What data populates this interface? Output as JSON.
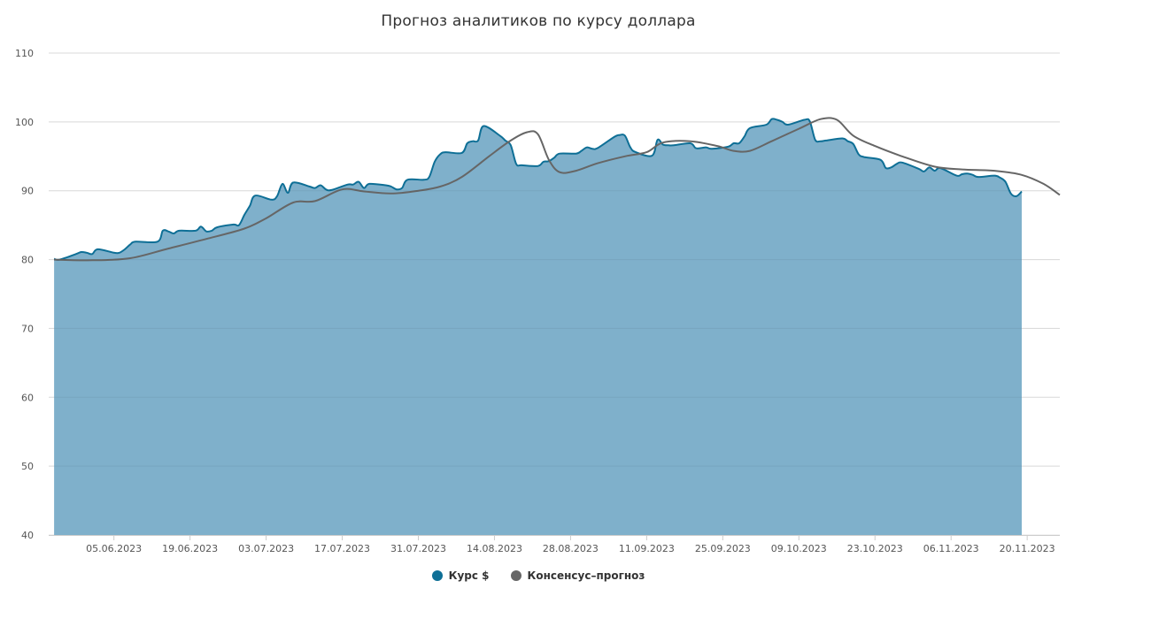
{
  "chart_data": {
    "type": "area",
    "title": "Прогноз аналитиков по курсу доллара",
    "xlabel": "",
    "ylabel": "",
    "ylim": [
      40,
      110
    ],
    "yticks": [
      40,
      50,
      60,
      70,
      80,
      90,
      100,
      110
    ],
    "xlim": [
      "2023-05-24",
      "2023-11-26"
    ],
    "xticks": [
      "05.06.2023",
      "19.06.2023",
      "03.07.2023",
      "17.07.2023",
      "31.07.2023",
      "14.08.2023",
      "28.08.2023",
      "11.09.2023",
      "25.09.2023",
      "09.10.2023",
      "23.10.2023",
      "06.11.2023",
      "20.11.2023"
    ],
    "grid": true,
    "legend_position": "bottom-center",
    "series": [
      {
        "name": "Курс $",
        "kind": "area",
        "color": "#0e6f96",
        "fill_color": "#7fb0cb",
        "points": [
          [
            "2023-05-25",
            80.1
          ],
          [
            "2023-05-26",
            80.0
          ],
          [
            "2023-05-29",
            80.8
          ],
          [
            "2023-05-30",
            81.1
          ],
          [
            "2023-05-31",
            81.0
          ],
          [
            "2023-06-01",
            80.8
          ],
          [
            "2023-06-02",
            81.5
          ],
          [
            "2023-06-05",
            81.0
          ],
          [
            "2023-06-06",
            81.0
          ],
          [
            "2023-06-07",
            81.5
          ],
          [
            "2023-06-08",
            82.2
          ],
          [
            "2023-06-09",
            82.6
          ],
          [
            "2023-06-13",
            82.6
          ],
          [
            "2023-06-14",
            84.2
          ],
          [
            "2023-06-15",
            84.1
          ],
          [
            "2023-06-16",
            83.8
          ],
          [
            "2023-06-17",
            84.2
          ],
          [
            "2023-06-20",
            84.2
          ],
          [
            "2023-06-21",
            84.8
          ],
          [
            "2023-06-22",
            84.1
          ],
          [
            "2023-06-23",
            84.2
          ],
          [
            "2023-06-24",
            84.7
          ],
          [
            "2023-06-27",
            85.1
          ],
          [
            "2023-06-28",
            85.0
          ],
          [
            "2023-06-29",
            86.5
          ],
          [
            "2023-06-30",
            87.8
          ],
          [
            "2023-07-01",
            89.3
          ],
          [
            "2023-07-04",
            88.7
          ],
          [
            "2023-07-05",
            89.2
          ],
          [
            "2023-07-06",
            91.0
          ],
          [
            "2023-07-07",
            89.7
          ],
          [
            "2023-07-08",
            91.2
          ],
          [
            "2023-07-11",
            90.6
          ],
          [
            "2023-07-12",
            90.4
          ],
          [
            "2023-07-13",
            90.8
          ],
          [
            "2023-07-14",
            90.2
          ],
          [
            "2023-07-15",
            90.1
          ],
          [
            "2023-07-18",
            90.9
          ],
          [
            "2023-07-19",
            90.9
          ],
          [
            "2023-07-20",
            91.3
          ],
          [
            "2023-07-21",
            90.4
          ],
          [
            "2023-07-22",
            91.0
          ],
          [
            "2023-07-25",
            90.8
          ],
          [
            "2023-07-26",
            90.6
          ],
          [
            "2023-07-27",
            90.2
          ],
          [
            "2023-07-28",
            90.4
          ],
          [
            "2023-07-29",
            91.6
          ],
          [
            "2023-08-01",
            91.6
          ],
          [
            "2023-08-02",
            92.0
          ],
          [
            "2023-08-03",
            94.2
          ],
          [
            "2023-08-04",
            95.3
          ],
          [
            "2023-08-05",
            95.6
          ],
          [
            "2023-08-08",
            95.5
          ],
          [
            "2023-08-09",
            96.9
          ],
          [
            "2023-08-10",
            97.2
          ],
          [
            "2023-08-11",
            97.3
          ],
          [
            "2023-08-12",
            99.4
          ],
          [
            "2023-08-15",
            98.0
          ],
          [
            "2023-08-16",
            97.3
          ],
          [
            "2023-08-17",
            96.6
          ],
          [
            "2023-08-18",
            93.9
          ],
          [
            "2023-08-19",
            93.7
          ],
          [
            "2023-08-22",
            93.6
          ],
          [
            "2023-08-23",
            94.2
          ],
          [
            "2023-08-24",
            94.3
          ],
          [
            "2023-08-25",
            94.8
          ],
          [
            "2023-08-26",
            95.4
          ],
          [
            "2023-08-29",
            95.4
          ],
          [
            "2023-08-30",
            95.8
          ],
          [
            "2023-08-31",
            96.3
          ],
          [
            "2023-09-01",
            96.1
          ],
          [
            "2023-09-02",
            96.2
          ],
          [
            "2023-09-05",
            97.8
          ],
          [
            "2023-09-06",
            98.1
          ],
          [
            "2023-09-07",
            98.0
          ],
          [
            "2023-09-08",
            96.3
          ],
          [
            "2023-09-09",
            95.6
          ],
          [
            "2023-09-12",
            95.1
          ],
          [
            "2023-09-13",
            97.4
          ],
          [
            "2023-09-14",
            96.7
          ],
          [
            "2023-09-15",
            96.6
          ],
          [
            "2023-09-16",
            96.6
          ],
          [
            "2023-09-19",
            96.9
          ],
          [
            "2023-09-20",
            96.2
          ],
          [
            "2023-09-21",
            96.2
          ],
          [
            "2023-09-22",
            96.3
          ],
          [
            "2023-09-23",
            96.1
          ],
          [
            "2023-09-26",
            96.4
          ],
          [
            "2023-09-27",
            96.9
          ],
          [
            "2023-09-28",
            96.9
          ],
          [
            "2023-09-29",
            97.9
          ],
          [
            "2023-09-30",
            99.1
          ],
          [
            "2023-10-03",
            99.6
          ],
          [
            "2023-10-04",
            100.4
          ],
          [
            "2023-10-05",
            100.3
          ],
          [
            "2023-10-06",
            100.0
          ],
          [
            "2023-10-07",
            99.6
          ],
          [
            "2023-10-10",
            100.3
          ],
          [
            "2023-10-11",
            100.1
          ],
          [
            "2023-10-12",
            97.4
          ],
          [
            "2023-10-13",
            97.2
          ],
          [
            "2023-10-14",
            97.3
          ],
          [
            "2023-10-17",
            97.6
          ],
          [
            "2023-10-18",
            97.2
          ],
          [
            "2023-10-19",
            96.8
          ],
          [
            "2023-10-20",
            95.3
          ],
          [
            "2023-10-21",
            94.9
          ],
          [
            "2023-10-24",
            94.5
          ],
          [
            "2023-10-25",
            93.3
          ],
          [
            "2023-10-26",
            93.4
          ],
          [
            "2023-10-27",
            93.9
          ],
          [
            "2023-10-28",
            94.1
          ],
          [
            "2023-10-31",
            93.2
          ],
          [
            "2023-11-01",
            92.8
          ],
          [
            "2023-11-02",
            93.4
          ],
          [
            "2023-11-03",
            92.9
          ],
          [
            "2023-11-04",
            93.3
          ],
          [
            "2023-11-07",
            92.2
          ],
          [
            "2023-11-08",
            92.4
          ],
          [
            "2023-11-09",
            92.5
          ],
          [
            "2023-11-10",
            92.3
          ],
          [
            "2023-11-11",
            92.0
          ],
          [
            "2023-11-14",
            92.2
          ],
          [
            "2023-11-15",
            91.9
          ],
          [
            "2023-11-16",
            91.3
          ],
          [
            "2023-11-17",
            89.6
          ],
          [
            "2023-11-18",
            89.2
          ],
          [
            "2023-11-19",
            89.9
          ]
        ]
      },
      {
        "name": "Консенсус–прогноз",
        "kind": "line",
        "color": "#666666",
        "points": [
          [
            "2023-05-25",
            80.0
          ],
          [
            "2023-06-01",
            79.9
          ],
          [
            "2023-06-08",
            80.2
          ],
          [
            "2023-06-15",
            81.6
          ],
          [
            "2023-06-22",
            83.0
          ],
          [
            "2023-06-29",
            84.5
          ],
          [
            "2023-07-03",
            86.0
          ],
          [
            "2023-07-08",
            88.3
          ],
          [
            "2023-07-12",
            88.5
          ],
          [
            "2023-07-17",
            90.2
          ],
          [
            "2023-07-21",
            89.9
          ],
          [
            "2023-07-26",
            89.6
          ],
          [
            "2023-07-31",
            90.0
          ],
          [
            "2023-08-04",
            90.6
          ],
          [
            "2023-08-08",
            92.0
          ],
          [
            "2023-08-13",
            95.0
          ],
          [
            "2023-08-17",
            97.3
          ],
          [
            "2023-08-20",
            98.5
          ],
          [
            "2023-08-22",
            98.2
          ],
          [
            "2023-08-24",
            94.5
          ],
          [
            "2023-08-26",
            92.7
          ],
          [
            "2023-08-29",
            92.9
          ],
          [
            "2023-09-02",
            94.0
          ],
          [
            "2023-09-07",
            95.0
          ],
          [
            "2023-09-11",
            95.6
          ],
          [
            "2023-09-14",
            97.0
          ],
          [
            "2023-09-19",
            97.2
          ],
          [
            "2023-09-24",
            96.5
          ],
          [
            "2023-09-27",
            95.8
          ],
          [
            "2023-09-30",
            95.8
          ],
          [
            "2023-10-04",
            97.2
          ],
          [
            "2023-10-09",
            99.0
          ],
          [
            "2023-10-13",
            100.4
          ],
          [
            "2023-10-16",
            100.3
          ],
          [
            "2023-10-19",
            98.0
          ],
          [
            "2023-10-23",
            96.5
          ],
          [
            "2023-10-28",
            95.0
          ],
          [
            "2023-11-03",
            93.5
          ],
          [
            "2023-11-08",
            93.1
          ],
          [
            "2023-11-14",
            92.9
          ],
          [
            "2023-11-19",
            92.3
          ],
          [
            "2023-11-23",
            91.0
          ],
          [
            "2023-11-26",
            89.4
          ]
        ]
      }
    ],
    "style": {
      "grid_color": "#e6e6e6",
      "axis_color": "#cccccc",
      "label_color": "#555555"
    }
  }
}
